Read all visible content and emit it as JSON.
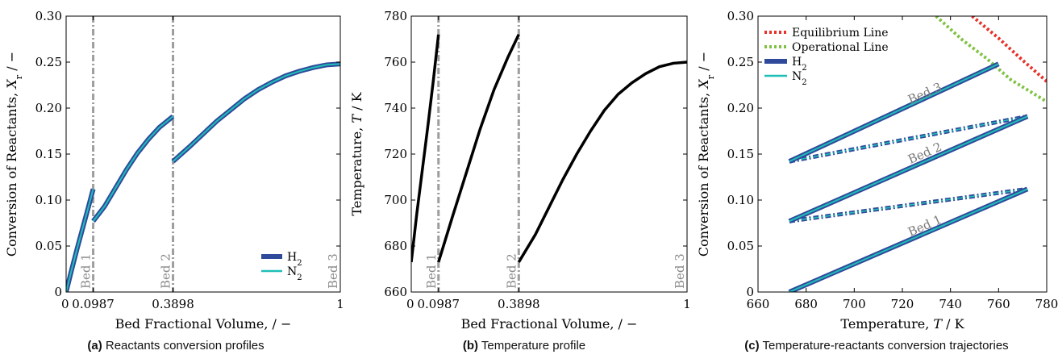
{
  "captions": [
    {
      "label": "(a)",
      "text": "Reactants conversion profiles"
    },
    {
      "label": "(b)",
      "text": "Temperature profile"
    },
    {
      "label": "(c)",
      "text": "Temperature-reactants conversion trajectories"
    }
  ],
  "chart_data": [
    {
      "id": "a",
      "type": "line",
      "xlabel": "Bed Fractional Volume, / −",
      "ylabel_prefix": "Conversion of Reactants, ",
      "ylabel_var": "X",
      "ylabel_sub": "r",
      "ylabel_suffix": " / −",
      "xlim": [
        0,
        1
      ],
      "ylim": [
        0,
        0.3
      ],
      "xticks": [
        0,
        0.0987,
        0.3898,
        1
      ],
      "xtick_labels": [
        "0",
        "0.0987",
        "0.3898",
        "1"
      ],
      "yticks": [
        0,
        0.05,
        0.1,
        0.15,
        0.2,
        0.25,
        0.3
      ],
      "ytick_labels": [
        "0",
        "0.05",
        "0.10",
        "0.15",
        "0.20",
        "0.25",
        "0.30"
      ],
      "grid": false,
      "legend_position": "bottom-right",
      "bed_lines": [
        0.0987,
        0.3898,
        1
      ],
      "bed_labels": [
        "Bed 1",
        "Bed 2",
        "Bed 3"
      ],
      "series": [
        {
          "name": "H",
          "sub": "2",
          "color": "#2f4a9b",
          "segments": [
            [
              [
                0.0,
                0.0
              ],
              [
                0.02,
                0.024
              ],
              [
                0.04,
                0.047
              ],
              [
                0.06,
                0.069
              ],
              [
                0.08,
                0.091
              ],
              [
                0.0987,
                0.112
              ]
            ],
            [
              [
                0.0987,
                0.077
              ],
              [
                0.14,
                0.093
              ],
              [
                0.18,
                0.113
              ],
              [
                0.22,
                0.133
              ],
              [
                0.26,
                0.151
              ],
              [
                0.3,
                0.166
              ],
              [
                0.34,
                0.179
              ],
              [
                0.3898,
                0.191
              ]
            ],
            [
              [
                0.3898,
                0.142
              ],
              [
                0.45,
                0.158
              ],
              [
                0.5,
                0.172
              ],
              [
                0.55,
                0.186
              ],
              [
                0.6,
                0.198
              ],
              [
                0.65,
                0.21
              ],
              [
                0.7,
                0.22
              ],
              [
                0.75,
                0.228
              ],
              [
                0.8,
                0.235
              ],
              [
                0.85,
                0.24
              ],
              [
                0.9,
                0.244
              ],
              [
                0.95,
                0.247
              ],
              [
                1.0,
                0.248
              ]
            ]
          ]
        },
        {
          "name": "N",
          "sub": "2",
          "color": "#1fbfb8",
          "segments": [
            [
              [
                0.0,
                0.0
              ],
              [
                0.02,
                0.024
              ],
              [
                0.04,
                0.047
              ],
              [
                0.06,
                0.069
              ],
              [
                0.08,
                0.091
              ],
              [
                0.0987,
                0.112
              ]
            ],
            [
              [
                0.0987,
                0.077
              ],
              [
                0.14,
                0.093
              ],
              [
                0.18,
                0.113
              ],
              [
                0.22,
                0.133
              ],
              [
                0.26,
                0.151
              ],
              [
                0.3,
                0.166
              ],
              [
                0.34,
                0.179
              ],
              [
                0.3898,
                0.191
              ]
            ],
            [
              [
                0.3898,
                0.142
              ],
              [
                0.45,
                0.158
              ],
              [
                0.5,
                0.172
              ],
              [
                0.55,
                0.186
              ],
              [
                0.6,
                0.198
              ],
              [
                0.65,
                0.21
              ],
              [
                0.7,
                0.22
              ],
              [
                0.75,
                0.228
              ],
              [
                0.8,
                0.235
              ],
              [
                0.85,
                0.24
              ],
              [
                0.9,
                0.244
              ],
              [
                0.95,
                0.247
              ],
              [
                1.0,
                0.248
              ]
            ]
          ]
        }
      ]
    },
    {
      "id": "b",
      "type": "line",
      "xlabel": "Bed Fractional Volume, / −",
      "ylabel_prefix": "Temperature, ",
      "ylabel_var": "T",
      "ylabel_sub": "",
      "ylabel_suffix": " / K",
      "xlim": [
        0,
        1
      ],
      "ylim": [
        660,
        780
      ],
      "xticks": [
        0,
        0.0987,
        0.3898,
        1
      ],
      "xtick_labels": [
        "0",
        "0.0987",
        "0.3898",
        "1"
      ],
      "yticks": [
        660,
        680,
        700,
        720,
        740,
        760,
        780
      ],
      "ytick_labels": [
        "660",
        "680",
        "700",
        "720",
        "740",
        "760",
        "780"
      ],
      "grid": false,
      "bed_lines": [
        0.0987,
        0.3898,
        1
      ],
      "bed_labels": [
        "Bed 1",
        "Bed 2",
        "Bed 3"
      ],
      "series": [
        {
          "color": "#000000",
          "segments": [
            [
              [
                0.0,
                673
              ],
              [
                0.02,
                694
              ],
              [
                0.04,
                713
              ],
              [
                0.06,
                732
              ],
              [
                0.08,
                752
              ],
              [
                0.0987,
                772
              ]
            ],
            [
              [
                0.0987,
                673
              ],
              [
                0.15,
                693
              ],
              [
                0.2,
                712
              ],
              [
                0.25,
                731
              ],
              [
                0.3,
                748
              ],
              [
                0.35,
                762
              ],
              [
                0.3898,
                772
              ]
            ],
            [
              [
                0.3898,
                673
              ],
              [
                0.45,
                685
              ],
              [
                0.5,
                697
              ],
              [
                0.55,
                709
              ],
              [
                0.6,
                720
              ],
              [
                0.65,
                730
              ],
              [
                0.7,
                739
              ],
              [
                0.75,
                746
              ],
              [
                0.8,
                751
              ],
              [
                0.85,
                755
              ],
              [
                0.9,
                758
              ],
              [
                0.95,
                759.5
              ],
              [
                1.0,
                760
              ]
            ]
          ]
        }
      ]
    },
    {
      "id": "c",
      "type": "line",
      "xlabel_prefix": "Temperature, ",
      "xlabel_var": "T",
      "xlabel_suffix": " / K",
      "ylabel_prefix": "Conversion of Reactants, ",
      "ylabel_var": "X",
      "ylabel_sub": "r",
      "ylabel_suffix": " / −",
      "xlim": [
        660,
        780
      ],
      "ylim": [
        0,
        0.3
      ],
      "xticks": [
        660,
        680,
        700,
        720,
        740,
        760,
        780
      ],
      "xtick_labels": [
        "660",
        "680",
        "700",
        "720",
        "740",
        "760",
        "780"
      ],
      "yticks": [
        0,
        0.05,
        0.1,
        0.15,
        0.2,
        0.25,
        0.3
      ],
      "ytick_labels": [
        "0",
        "0.05",
        "0.10",
        "0.15",
        "0.20",
        "0.25",
        "0.30"
      ],
      "grid": false,
      "legend_position": "top-left",
      "legend": [
        {
          "name": "Equilibrium Line",
          "sub": "",
          "style": "dotted",
          "color": "#e8312a"
        },
        {
          "name": "Operational Line",
          "sub": "",
          "style": "dotted",
          "color": "#7fc241"
        },
        {
          "name": "H",
          "sub": "2",
          "style": "solid",
          "color": "#2f4a9b"
        },
        {
          "name": "N",
          "sub": "2",
          "style": "solid",
          "color": "#1fbfb8"
        }
      ],
      "equilibrium_line": [
        [
          749,
          0.3
        ],
        [
          760,
          0.276
        ],
        [
          770,
          0.252
        ],
        [
          780,
          0.229
        ]
      ],
      "operational_line": [
        [
          734,
          0.3
        ],
        [
          745,
          0.274
        ],
        [
          755,
          0.254
        ],
        [
          765,
          0.231
        ],
        [
          780,
          0.207
        ]
      ],
      "trajectories": [
        [
          [
            673,
            0.0
          ],
          [
            772,
            0.112
          ]
        ],
        [
          [
            673,
            0.077
          ],
          [
            772,
            0.191
          ]
        ],
        [
          [
            673,
            0.142
          ],
          [
            760,
            0.248
          ]
        ]
      ],
      "quench_lines": [
        [
          [
            673,
            0.077
          ],
          [
            772,
            0.112
          ]
        ],
        [
          [
            673,
            0.142
          ],
          [
            772,
            0.191
          ]
        ]
      ],
      "bed_labels": [
        {
          "text": "Bed 1",
          "x": 730,
          "y": 0.068
        },
        {
          "text": "Bed 2",
          "x": 730,
          "y": 0.147
        },
        {
          "text": "Bed 3",
          "x": 730,
          "y": 0.212
        }
      ]
    }
  ]
}
